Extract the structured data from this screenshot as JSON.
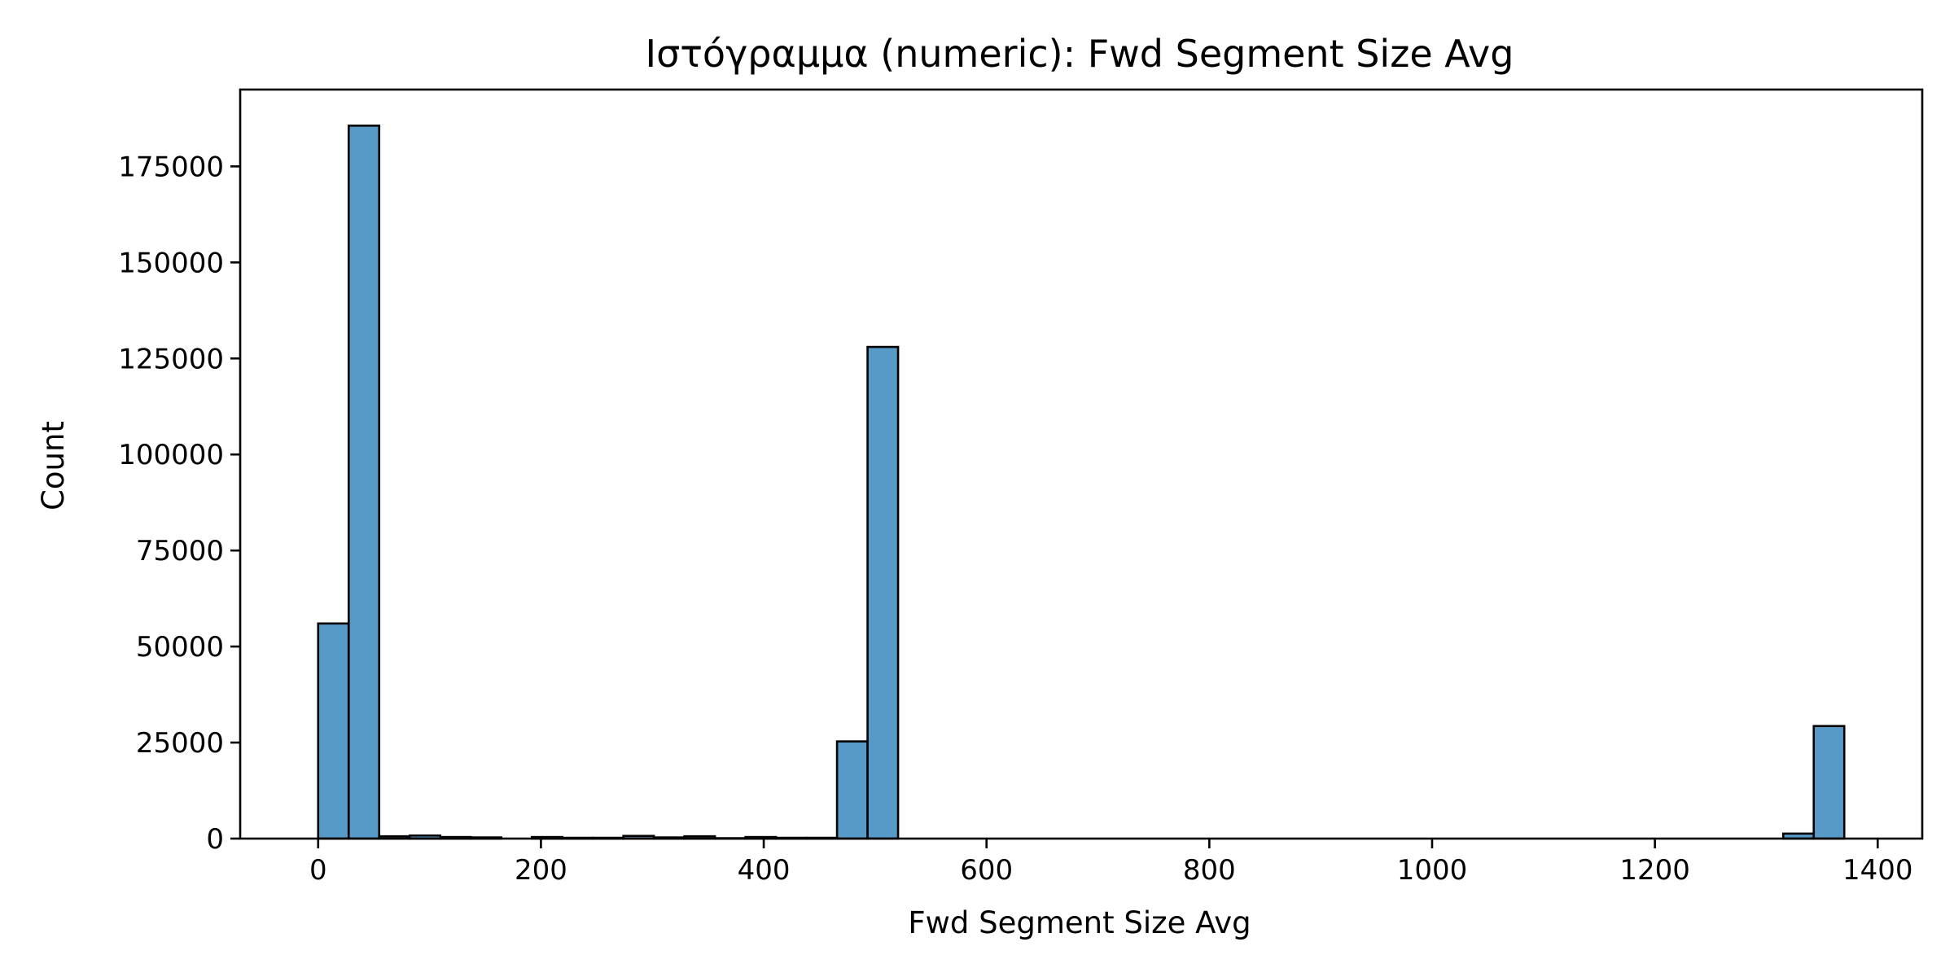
{
  "chart_data": {
    "type": "histogram",
    "title": "Ιστόγραμμα (numeric): Fwd Segment Size Avg",
    "xlabel": "Fwd Segment Size Avg",
    "ylabel": "Count",
    "bar_color": "#5799c7",
    "edge_color": "#000000",
    "bin_width": 27.4,
    "bins": [
      {
        "start": 0.0,
        "count": 56000
      },
      {
        "start": 27.4,
        "count": 185600
      },
      {
        "start": 54.8,
        "count": 600
      },
      {
        "start": 82.2,
        "count": 800
      },
      {
        "start": 109.6,
        "count": 400
      },
      {
        "start": 137.0,
        "count": 300
      },
      {
        "start": 164.4,
        "count": 0
      },
      {
        "start": 191.8,
        "count": 400
      },
      {
        "start": 219.2,
        "count": 200
      },
      {
        "start": 246.6,
        "count": 200
      },
      {
        "start": 274.0,
        "count": 700
      },
      {
        "start": 301.4,
        "count": 300
      },
      {
        "start": 328.8,
        "count": 600
      },
      {
        "start": 356.2,
        "count": 100
      },
      {
        "start": 383.6,
        "count": 400
      },
      {
        "start": 411.0,
        "count": 200
      },
      {
        "start": 438.4,
        "count": 200
      },
      {
        "start": 465.8,
        "count": 25300
      },
      {
        "start": 493.2,
        "count": 128000
      },
      {
        "start": 1315.2,
        "count": 1300
      },
      {
        "start": 1342.6,
        "count": 29300
      }
    ],
    "xlim": [
      -70,
      1440
    ],
    "ylim": [
      0,
      195000
    ],
    "xticks": [
      0,
      200,
      400,
      600,
      800,
      1000,
      1200,
      1400
    ],
    "xtick_labels": [
      "0",
      "200",
      "400",
      "600",
      "800",
      "1000",
      "1200",
      "1400"
    ],
    "yticks": [
      0,
      25000,
      50000,
      75000,
      100000,
      125000,
      150000,
      175000
    ],
    "ytick_labels": [
      "0",
      "25000",
      "50000",
      "75000",
      "100000",
      "125000",
      "150000",
      "175000"
    ]
  }
}
